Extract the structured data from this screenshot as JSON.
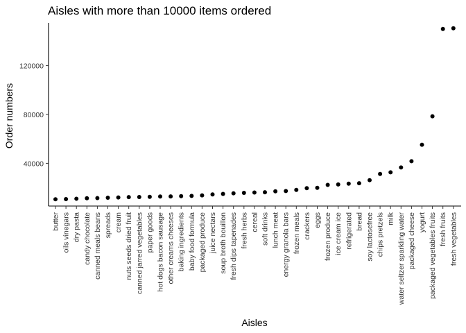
{
  "chart_data": {
    "type": "scatter",
    "title": "Aisles with more than 10000 items ordered",
    "xlabel": "Aisles",
    "ylabel": "Order numbers",
    "ylim": [
      5000,
      155000
    ],
    "yticks": [
      40000,
      80000,
      120000
    ],
    "ytick_labels": [
      "40000",
      "80000",
      "120000"
    ],
    "grid": false,
    "legend": "none",
    "point_color": "#000000",
    "categories": [
      "butter",
      "oils vinegars",
      "dry pasta",
      "candy chocolate",
      "canned meals beans",
      "spreads",
      "cream",
      "nuts seeds dried fruit",
      "canned jarred vegetables",
      "paper goods",
      "hot dogs bacon sausage",
      "other creams cheeses",
      "baking ingredients",
      "baby food formula",
      "packaged produce",
      "juice nectars",
      "soup broth bouillon",
      "fresh dips tapenades",
      "fresh herbs",
      "cereal",
      "soft drinks",
      "lunch meat",
      "energy granola bars",
      "frozen meals",
      "crackers",
      "eggs",
      "frozen produce",
      "ice cream ice",
      "refrigerated",
      "bread",
      "soy lactosefree",
      "chips pretzels",
      "milk",
      "water seltzer sparkling water",
      "packaged cheese",
      "yogurt",
      "packaged vegetables fruits",
      "fresh fruits",
      "fresh vegetables"
    ],
    "values": [
      10575,
      10700,
      11000,
      11400,
      11500,
      11800,
      12000,
      12300,
      12400,
      12550,
      12800,
      12900,
      13100,
      13300,
      13750,
      14500,
      14950,
      15450,
      15800,
      16100,
      16300,
      17100,
      17300,
      18200,
      19600,
      19900,
      22300,
      22700,
      23300,
      23700,
      26200,
      31300,
      32600,
      36600,
      41700,
      55200,
      78500,
      150000,
      150600
    ]
  }
}
